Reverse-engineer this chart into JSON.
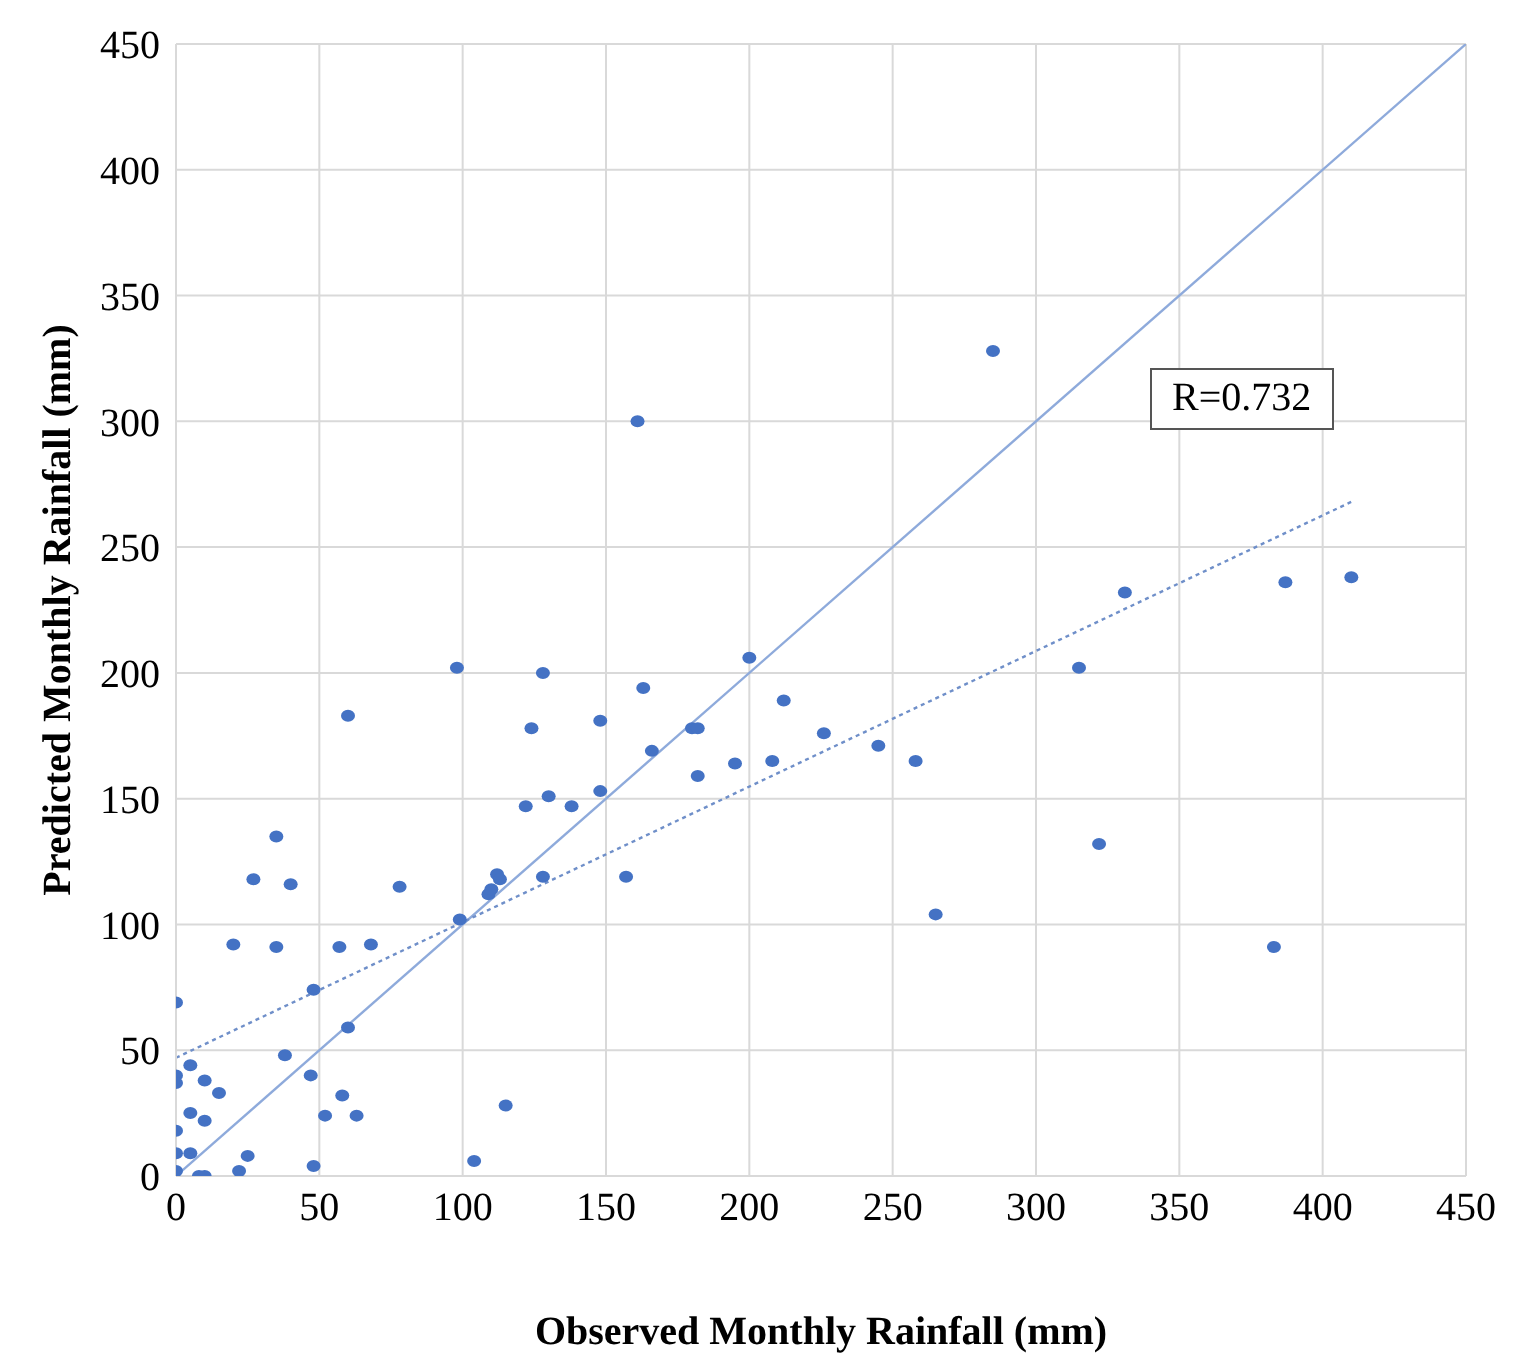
{
  "chart_data": {
    "type": "scatter",
    "xlabel": "Observed Monthly Rainfall (mm)",
    "ylabel": "Predicted Monthly Rainfall (mm)",
    "xlim": [
      0,
      450
    ],
    "ylim": [
      0,
      450
    ],
    "xticks": [
      0,
      50,
      100,
      150,
      200,
      250,
      300,
      350,
      400,
      450
    ],
    "yticks": [
      0,
      50,
      100,
      150,
      200,
      250,
      300,
      350,
      400,
      450
    ],
    "grid": true,
    "annotations": [
      "R=0.732"
    ],
    "series": [
      {
        "marker": "circle",
        "color": "#4472c4",
        "x": [
          0,
          0,
          0,
          0,
          0,
          0,
          5,
          5,
          5,
          8,
          10,
          10,
          10,
          15,
          20,
          22,
          25,
          27,
          35,
          35,
          38,
          40,
          47,
          48,
          48,
          52,
          57,
          58,
          60,
          60,
          63,
          68,
          78,
          98,
          99,
          104,
          109,
          110,
          112,
          113,
          115,
          122,
          124,
          128,
          128,
          130,
          138,
          148,
          148,
          157,
          161,
          163,
          166,
          180,
          182,
          182,
          195,
          200,
          208,
          212,
          226,
          245,
          258,
          265,
          285,
          315,
          322,
          331,
          383,
          387,
          410
        ],
        "values": [
          69,
          40,
          37,
          18,
          9,
          2,
          44,
          25,
          9,
          0,
          0,
          38,
          22,
          33,
          92,
          2,
          8,
          118,
          135,
          91,
          48,
          116,
          40,
          74,
          4,
          24,
          91,
          32,
          59,
          183,
          24,
          92,
          115,
          202,
          102,
          6,
          112,
          114,
          120,
          118,
          28,
          147,
          178,
          119,
          200,
          151,
          147,
          153,
          181,
          119,
          300,
          194,
          169,
          178,
          159,
          178,
          164,
          206,
          165,
          189,
          176,
          171,
          165,
          104,
          328,
          202,
          132,
          232,
          91,
          236,
          238
        ]
      },
      {
        "type": "line",
        "marker": "none",
        "color": "#8eaadb",
        "line_style": "solid",
        "x": [
          0,
          450
        ],
        "values": [
          0,
          450
        ]
      },
      {
        "type": "line",
        "marker": "none",
        "color": "#6f8fc9",
        "line_style": "dotted",
        "x": [
          0,
          410
        ],
        "values": [
          47,
          268
        ]
      }
    ]
  }
}
